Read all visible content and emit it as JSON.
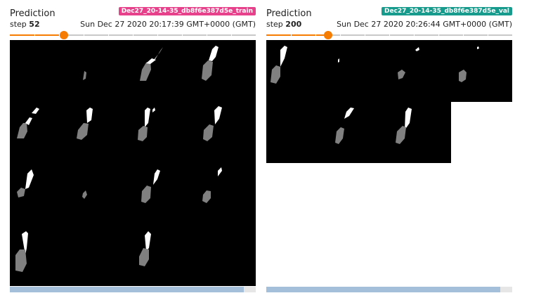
{
  "cards": [
    {
      "title": "Prediction",
      "run": "Dec27_20-14-35_db8f6e387d5e_train",
      "run_color": "#e8418b",
      "step_label": "step",
      "step": "52",
      "timestamp": "Sun Dec 27 2020 20:17:39 GMT+0000 (GMT)",
      "slider_position": 0.22,
      "scroll_visible_fraction": 0.95
    },
    {
      "title": "Prediction",
      "run": "Dec27_20-14-35_db8f6e387d5e_val",
      "run_color": "#179b8c",
      "step_label": "step",
      "step": "200",
      "timestamp": "Sun Dec 27 2020 20:26:44 GMT+0000 (GMT)",
      "slider_position": 0.25,
      "scroll_visible_fraction": 0.95
    }
  ]
}
